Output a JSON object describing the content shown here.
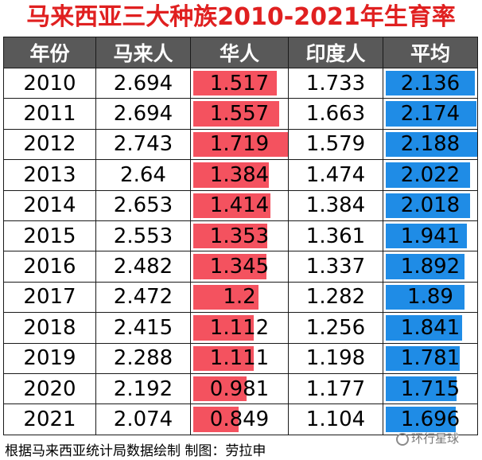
{
  "title": "马来西亚三大种族2010-2021年生育率",
  "colors": {
    "header_bg": "#595959",
    "chinese_bar": "#f4525f",
    "average_bar": "#1f8ce6",
    "title": "#e02020"
  },
  "chart_data": {
    "type": "table",
    "columns": [
      "年份",
      "马来人",
      "华人",
      "印度人",
      "平均"
    ],
    "rows": [
      [
        "2010",
        "2.694",
        "1.517",
        "1.733",
        "2.136"
      ],
      [
        "2011",
        "2.694",
        "1.557",
        "1.663",
        "2.174"
      ],
      [
        "2012",
        "2.743",
        "1.719",
        "1.579",
        "2.188"
      ],
      [
        "2013",
        "2.64",
        "1.384",
        "1.474",
        "2.022"
      ],
      [
        "2014",
        "2.653",
        "1.414",
        "1.384",
        "2.018"
      ],
      [
        "2015",
        "2.553",
        "1.353",
        "1.361",
        "1.941"
      ],
      [
        "2016",
        "2.482",
        "1.345",
        "1.337",
        "1.892"
      ],
      [
        "2017",
        "2.472",
        "1.2",
        "1.282",
        "1.89"
      ],
      [
        "2018",
        "2.415",
        "1.112",
        "1.256",
        "1.841"
      ],
      [
        "2019",
        "2.288",
        "1.111",
        "1.198",
        "1.781"
      ],
      [
        "2020",
        "2.192",
        "0.981",
        "1.177",
        "1.715"
      ],
      [
        "2021",
        "2.074",
        "0.849",
        "1.104",
        "1.696"
      ]
    ],
    "data_bars": [
      {
        "column": "华人",
        "color": "#f4525f"
      },
      {
        "column": "平均",
        "color": "#1f8ce6"
      }
    ]
  },
  "footer": "根据马来西亚统计局数据绘制  制图：劳拉申",
  "watermark": "环行星球"
}
